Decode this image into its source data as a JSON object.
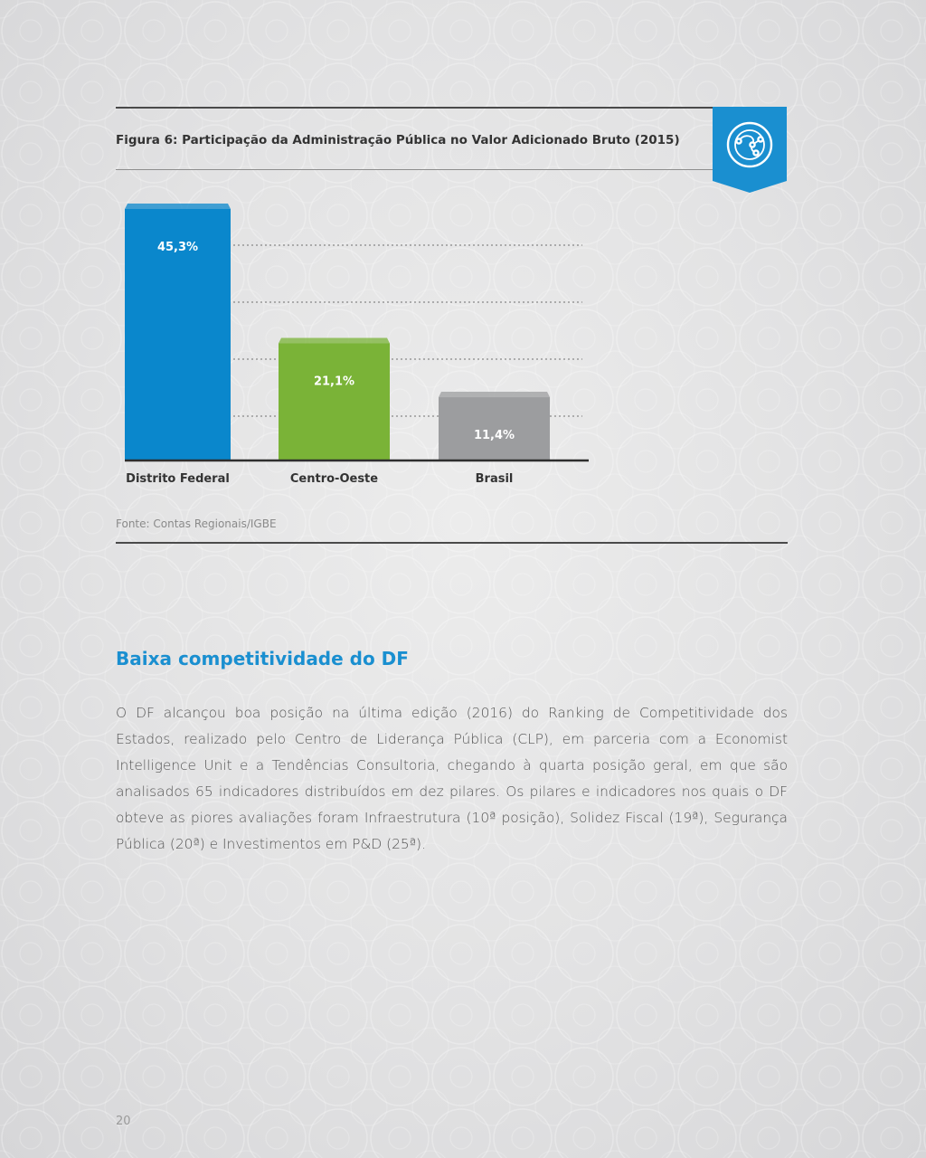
{
  "figure": {
    "title": "Figura 6: Participação da Administração Pública no Valor Adicionado Bruto (2015)",
    "source": "Fonte: Contas Regionais/IGBE",
    "badge_icon": "network-globe-icon",
    "colors": {
      "ribbon": "#1a8fd0",
      "distrito_federal": "#0a87cc",
      "centro_oeste": "#7ab337",
      "brasil": "#9c9d9f"
    }
  },
  "chart_data": {
    "type": "bar",
    "categories": [
      "Distrito Federal",
      "Centro-Oeste",
      "Brasil"
    ],
    "values": [
      45.3,
      21.1,
      11.4
    ],
    "value_labels": [
      "45,3%",
      "21,1%",
      "11,4%"
    ],
    "colors": [
      "#0a87cc",
      "#7ab337",
      "#9c9d9f"
    ],
    "title": "",
    "xlabel": "",
    "ylabel": "",
    "ylim": [
      0,
      45.3
    ],
    "grid": "dotted horizontal lines",
    "legend": "none"
  },
  "section": {
    "heading": "Baixa competitividade do DF",
    "body": "O DF alcançou boa posição na última edição (2016) do Ranking de Competitividade dos Estados, realizado pelo Centro de Liderança Pública (CLP), em parceria com a Economist Intelligence Unit e a Tendências Consultoria, chegando à quarta posição geral, em que são analisados 65 indicadores distribuídos em dez pilares. Os pilares e indicadores nos quais o DF obteve as piores avaliações foram Infraestrutura (10ª posição), Solidez Fiscal (19ª), Segurança Pública (20ª) e Investimentos em P&D (25ª)."
  },
  "page_number": "20"
}
